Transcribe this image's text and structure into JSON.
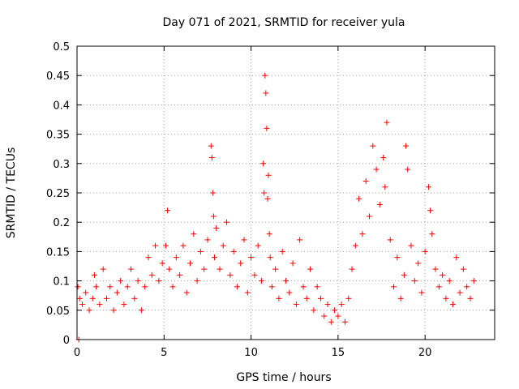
{
  "chart_data": {
    "type": "scatter",
    "title": "Day 071 of 2021, SRMTID for receiver yula",
    "xlabel": "GPS time / hours",
    "ylabel": "SRMTID / TECUs",
    "xlim": [
      0,
      24
    ],
    "ylim": [
      0,
      0.5
    ],
    "x_ticks": [
      0,
      5,
      10,
      15,
      20
    ],
    "x_tick_labels": [
      "0",
      "5",
      "10",
      "15",
      "20"
    ],
    "y_ticks": [
      0,
      0.05,
      0.1,
      0.15,
      0.2,
      0.25,
      0.3,
      0.35,
      0.4,
      0.45,
      0.5
    ],
    "y_tick_labels": [
      "0",
      "0.05",
      "0.1",
      "0.15",
      "0.2",
      "0.25",
      "0.3",
      "0.35",
      "0.4",
      "0.45",
      "0.5"
    ],
    "grid": true,
    "marker": "+",
    "color": "#ff0000",
    "series": [
      {
        "name": "SRMTID",
        "x": [
          0.05,
          0.1,
          0.15,
          0.3,
          0.5,
          0.7,
          0.9,
          1.0,
          1.1,
          1.3,
          1.5,
          1.7,
          1.9,
          2.1,
          2.3,
          2.5,
          2.7,
          2.9,
          3.1,
          3.3,
          3.5,
          3.7,
          3.9,
          4.1,
          4.3,
          4.5,
          4.7,
          4.9,
          5.1,
          5.2,
          5.3,
          5.5,
          5.7,
          5.9,
          6.1,
          6.3,
          6.5,
          6.7,
          6.9,
          7.1,
          7.3,
          7.5,
          7.7,
          7.75,
          7.8,
          7.85,
          7.9,
          8.0,
          8.2,
          8.4,
          8.6,
          8.8,
          9.0,
          9.2,
          9.4,
          9.6,
          9.8,
          10.0,
          10.2,
          10.4,
          10.6,
          10.7,
          10.75,
          10.8,
          10.85,
          10.9,
          10.95,
          11.0,
          11.05,
          11.1,
          11.2,
          11.4,
          11.6,
          11.8,
          12.0,
          12.2,
          12.4,
          12.6,
          12.8,
          13.0,
          13.2,
          13.4,
          13.6,
          13.8,
          14.0,
          14.2,
          14.4,
          14.6,
          14.8,
          15.0,
          15.2,
          15.4,
          15.6,
          15.8,
          16.0,
          16.2,
          16.4,
          16.6,
          16.8,
          17.0,
          17.2,
          17.4,
          17.6,
          17.7,
          17.8,
          18.0,
          18.2,
          18.4,
          18.6,
          18.8,
          18.9,
          19.0,
          19.2,
          19.4,
          19.6,
          19.8,
          20.0,
          20.2,
          20.3,
          20.4,
          20.6,
          20.8,
          21.0,
          21.2,
          21.4,
          21.6,
          21.8,
          22.0,
          22.2,
          22.4,
          22.6,
          22.8
        ],
        "y": [
          0.09,
          0.0,
          0.07,
          0.06,
          0.08,
          0.05,
          0.07,
          0.11,
          0.09,
          0.06,
          0.12,
          0.07,
          0.09,
          0.05,
          0.08,
          0.1,
          0.06,
          0.09,
          0.12,
          0.07,
          0.1,
          0.05,
          0.09,
          0.14,
          0.11,
          0.16,
          0.1,
          0.13,
          0.16,
          0.22,
          0.12,
          0.09,
          0.14,
          0.11,
          0.16,
          0.08,
          0.13,
          0.18,
          0.1,
          0.15,
          0.12,
          0.17,
          0.33,
          0.31,
          0.25,
          0.21,
          0.14,
          0.19,
          0.12,
          0.16,
          0.2,
          0.11,
          0.15,
          0.09,
          0.13,
          0.17,
          0.08,
          0.14,
          0.11,
          0.16,
          0.1,
          0.3,
          0.25,
          0.45,
          0.42,
          0.36,
          0.24,
          0.28,
          0.18,
          0.14,
          0.09,
          0.12,
          0.07,
          0.15,
          0.1,
          0.08,
          0.13,
          0.06,
          0.17,
          0.09,
          0.07,
          0.12,
          0.05,
          0.09,
          0.07,
          0.04,
          0.06,
          0.03,
          0.05,
          0.04,
          0.06,
          0.03,
          0.07,
          0.12,
          0.16,
          0.24,
          0.18,
          0.27,
          0.21,
          0.33,
          0.29,
          0.23,
          0.31,
          0.26,
          0.37,
          0.17,
          0.09,
          0.14,
          0.07,
          0.11,
          0.33,
          0.29,
          0.16,
          0.1,
          0.13,
          0.08,
          0.15,
          0.26,
          0.22,
          0.18,
          0.12,
          0.09,
          0.11,
          0.07,
          0.1,
          0.06,
          0.14,
          0.08,
          0.12,
          0.09,
          0.07,
          0.1
        ]
      }
    ]
  }
}
